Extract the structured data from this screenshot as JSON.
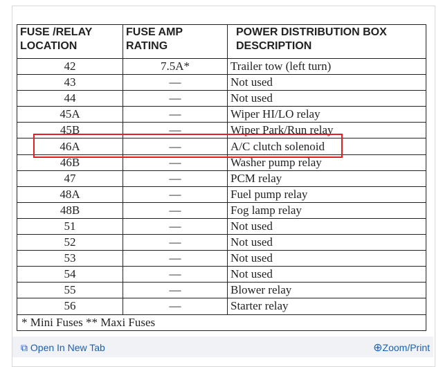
{
  "table": {
    "headers": [
      "FUSE /RELAY LOCATION",
      "FUSE AMP RATING",
      "POWER DISTRIBUTION BOX DESCRIPTION"
    ],
    "rows": [
      [
        "42",
        "7.5A*",
        "Trailer tow (left turn)"
      ],
      [
        "43",
        "—",
        "Not used"
      ],
      [
        "44",
        "—",
        "Not used"
      ],
      [
        "45A",
        "—",
        "Wiper HI/LO relay"
      ],
      [
        "45B",
        "—",
        "Wiper Park/Run relay"
      ],
      [
        "46A",
        "—",
        "A/C clutch solenoid"
      ],
      [
        "46B",
        "—",
        "Washer pump relay"
      ],
      [
        "47",
        "—",
        "PCM relay"
      ],
      [
        "48A",
        "—",
        "Fuel pump relay"
      ],
      [
        "48B",
        "—",
        "Fog lamp relay"
      ],
      [
        "51",
        "—",
        "Not used"
      ],
      [
        "52",
        "—",
        "Not used"
      ],
      [
        "53",
        "—",
        "Not used"
      ],
      [
        "54",
        "—",
        "Not used"
      ],
      [
        "55",
        "—",
        "Blower relay"
      ],
      [
        "56",
        "—",
        "Starter relay"
      ]
    ],
    "footnote": "* Mini Fuses ** Maxi Fuses",
    "highlighted_row": "46A",
    "highlight_color": "#e02020"
  },
  "toolbar": {
    "open_label": "Open In New Tab",
    "open_icon": "open-tab-icon",
    "zoom_label": "Zoom/Print",
    "zoom_icon": "zoom-in-icon",
    "link_color": "#1a5fb4"
  }
}
